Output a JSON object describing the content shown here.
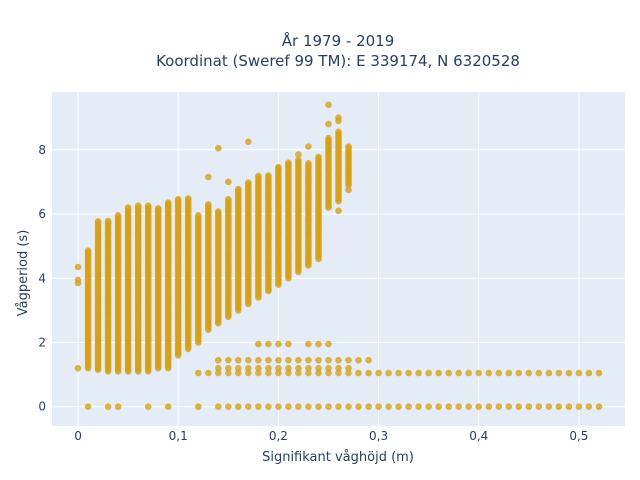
{
  "chart_data": {
    "type": "scatter",
    "title": "År 1979 - 2019",
    "subtitle": "Koordinat (Sweref 99 TM): E 339174, N 6320528",
    "xlabel": "Signifikant våghöjd (m)",
    "ylabel": "Vågperiod (s)",
    "xlim": [
      -0.026,
      0.546
    ],
    "ylim": [
      -0.6,
      9.8
    ],
    "x_ticks": [
      0,
      0.1,
      0.2,
      0.3,
      0.4,
      0.5
    ],
    "x_tick_labels": [
      "0",
      "0,1",
      "0,2",
      "0,3",
      "0,4",
      "0,5"
    ],
    "y_ticks": [
      0,
      2,
      4,
      6,
      8
    ],
    "y_tick_labels": [
      "0",
      "2",
      "4",
      "6",
      "8"
    ],
    "grid": true,
    "marker_color": "#d4a017",
    "plot_bg": "#e5ecf6",
    "x_step": 0.01,
    "main_cluster": [
      [
        0.01,
        1.2,
        4.9
      ],
      [
        0.02,
        1.15,
        5.8
      ],
      [
        0.03,
        1.1,
        5.8
      ],
      [
        0.04,
        1.1,
        6.0
      ],
      [
        0.05,
        1.1,
        6.2
      ],
      [
        0.06,
        1.1,
        6.3
      ],
      [
        0.07,
        1.1,
        6.3
      ],
      [
        0.08,
        1.2,
        6.2
      ],
      [
        0.09,
        1.2,
        6.4
      ],
      [
        0.1,
        1.6,
        6.5
      ],
      [
        0.11,
        1.8,
        6.5
      ],
      [
        0.12,
        2.0,
        6.0
      ],
      [
        0.13,
        2.4,
        6.3
      ],
      [
        0.14,
        2.6,
        6.1
      ],
      [
        0.15,
        2.8,
        6.5
      ],
      [
        0.16,
        3.0,
        6.8
      ],
      [
        0.17,
        3.2,
        7.0
      ],
      [
        0.18,
        3.4,
        7.2
      ],
      [
        0.19,
        3.6,
        7.2
      ],
      [
        0.2,
        3.8,
        7.5
      ],
      [
        0.21,
        4.0,
        7.6
      ],
      [
        0.22,
        4.2,
        7.7
      ],
      [
        0.23,
        4.4,
        7.6
      ],
      [
        0.24,
        4.6,
        7.8
      ],
      [
        0.25,
        6.2,
        8.4
      ],
      [
        0.26,
        6.4,
        8.6
      ],
      [
        0.27,
        6.9,
        8.1
      ]
    ],
    "outliers": [
      [
        0.0,
        4.35
      ],
      [
        0.0,
        3.95
      ],
      [
        0.0,
        3.85
      ],
      [
        0.0,
        1.2
      ],
      [
        0.14,
        8.05
      ],
      [
        0.17,
        8.25
      ],
      [
        0.13,
        7.15
      ],
      [
        0.15,
        7.0
      ],
      [
        0.22,
        7.85
      ],
      [
        0.25,
        9.4
      ],
      [
        0.26,
        9.0
      ],
      [
        0.26,
        8.9
      ],
      [
        0.26,
        6.1
      ],
      [
        0.27,
        6.75
      ],
      [
        0.25,
        8.8
      ],
      [
        0.23,
        8.1
      ]
    ],
    "low_band_rows": [
      {
        "y": 1.45,
        "x_start": 0.14,
        "x_end": 0.29
      },
      {
        "y": 1.2,
        "x_start": 0.14,
        "x_end": 0.27
      },
      {
        "y": 1.05,
        "x_start": 0.12,
        "x_end": 0.52
      },
      {
        "y": 1.95,
        "x_start": 0.18,
        "x_end": 0.21
      },
      {
        "y": 1.95,
        "x_start": 0.23,
        "x_end": 0.25
      }
    ],
    "zero_row": {
      "y": 0.0,
      "x_start": 0.14,
      "x_end": 0.52,
      "extra_x": [
        0.01,
        0.03,
        0.04,
        0.07,
        0.09,
        0.12
      ]
    }
  }
}
